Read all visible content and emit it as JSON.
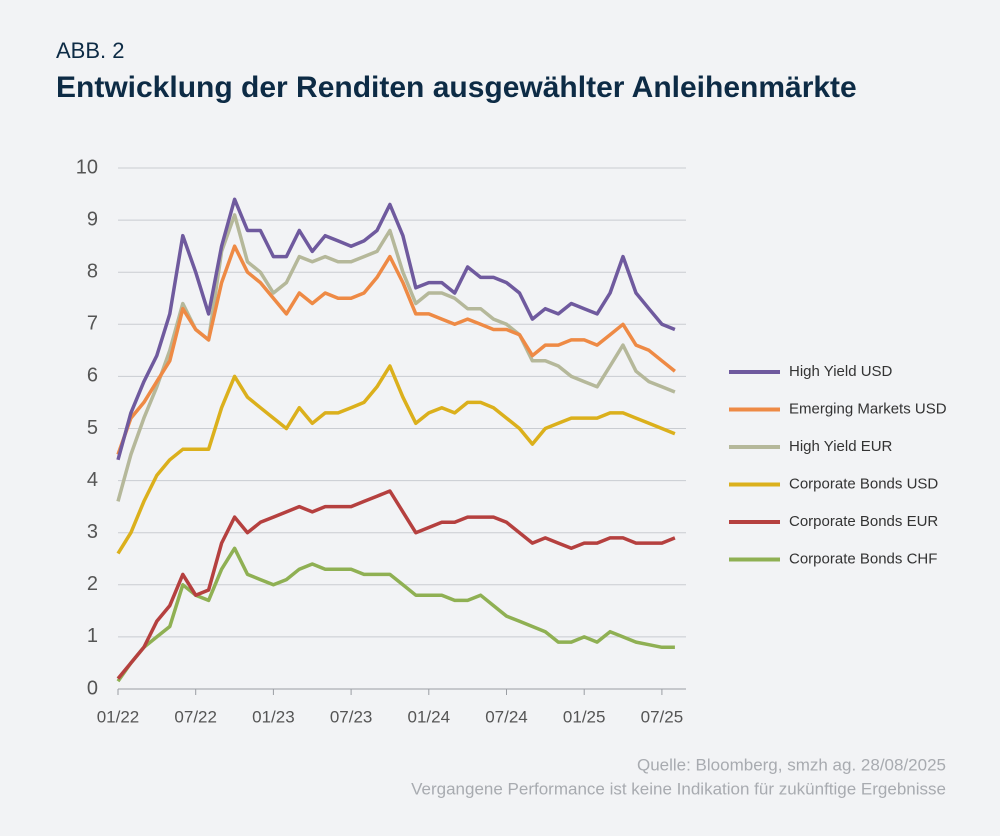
{
  "chart_data": {
    "type": "line",
    "figure_label": "ABB. 2",
    "title": "Entwicklung der Renditen ausgewählter Anleihenmärkte",
    "notes": [
      "Quelle: Bloomberg, smzh ag. 28/08/2025",
      "Vergangene Performance ist keine Indikation für zukünftige Ergebnisse"
    ],
    "x": [
      "01/22",
      "02/22",
      "03/22",
      "04/22",
      "05/22",
      "06/22",
      "07/22",
      "08/22",
      "09/22",
      "10/22",
      "11/22",
      "12/22",
      "01/23",
      "02/23",
      "03/23",
      "04/23",
      "05/23",
      "06/23",
      "07/23",
      "08/23",
      "09/23",
      "10/23",
      "11/23",
      "12/23",
      "01/24",
      "02/24",
      "03/24",
      "04/24",
      "05/24",
      "06/24",
      "07/24",
      "08/24",
      "09/24",
      "10/24",
      "11/24",
      "12/24",
      "01/25",
      "02/25",
      "03/25",
      "04/25",
      "05/25",
      "06/25",
      "07/25",
      "08/25"
    ],
    "xticks": [
      "01/22",
      "07/22",
      "01/23",
      "07/23",
      "01/24",
      "07/24",
      "01/25",
      "07/25"
    ],
    "ylim": [
      0,
      10
    ],
    "yticks": [
      0,
      1,
      2,
      3,
      4,
      5,
      6,
      7,
      8,
      9,
      10
    ],
    "grid": true,
    "legend": "right",
    "series": [
      {
        "name": "High Yield USD",
        "color": "#6f5a9e",
        "values": [
          4.4,
          5.3,
          5.9,
          6.4,
          7.2,
          8.7,
          8.0,
          7.2,
          8.5,
          9.4,
          8.8,
          8.8,
          8.3,
          8.3,
          8.8,
          8.4,
          8.7,
          8.6,
          8.5,
          8.6,
          8.8,
          9.3,
          8.7,
          7.7,
          7.8,
          7.8,
          7.6,
          8.1,
          7.9,
          7.9,
          7.8,
          7.6,
          7.1,
          7.3,
          7.2,
          7.4,
          7.3,
          7.2,
          7.6,
          8.3,
          7.6,
          7.3,
          7.0,
          6.9
        ]
      },
      {
        "name": "Emerging Markets USD",
        "color": "#ee8a45",
        "values": [
          4.5,
          5.2,
          5.5,
          5.9,
          6.3,
          7.3,
          6.9,
          6.7,
          7.8,
          8.5,
          8.0,
          7.8,
          7.5,
          7.2,
          7.6,
          7.4,
          7.6,
          7.5,
          7.5,
          7.6,
          7.9,
          8.3,
          7.8,
          7.2,
          7.2,
          7.1,
          7.0,
          7.1,
          7.0,
          6.9,
          6.9,
          6.8,
          6.4,
          6.6,
          6.6,
          6.7,
          6.7,
          6.6,
          6.8,
          7.0,
          6.6,
          6.5,
          6.3,
          6.1
        ]
      },
      {
        "name": "High Yield EUR",
        "color": "#b5b89a",
        "values": [
          3.6,
          4.5,
          5.2,
          5.8,
          6.5,
          7.4,
          6.9,
          6.7,
          8.4,
          9.1,
          8.2,
          8.0,
          7.6,
          7.8,
          8.3,
          8.2,
          8.3,
          8.2,
          8.2,
          8.3,
          8.4,
          8.8,
          8.0,
          7.4,
          7.6,
          7.6,
          7.5,
          7.3,
          7.3,
          7.1,
          7.0,
          6.8,
          6.3,
          6.3,
          6.2,
          6.0,
          5.9,
          5.8,
          6.2,
          6.6,
          6.1,
          5.9,
          5.8,
          5.7
        ]
      },
      {
        "name": "Corporate Bonds USD",
        "color": "#dbb01c",
        "values": [
          2.6,
          3.0,
          3.6,
          4.1,
          4.4,
          4.6,
          4.6,
          4.6,
          5.4,
          6.0,
          5.6,
          5.4,
          5.2,
          5.0,
          5.4,
          5.1,
          5.3,
          5.3,
          5.4,
          5.5,
          5.8,
          6.2,
          5.6,
          5.1,
          5.3,
          5.4,
          5.3,
          5.5,
          5.5,
          5.4,
          5.2,
          5.0,
          4.7,
          5.0,
          5.1,
          5.2,
          5.2,
          5.2,
          5.3,
          5.3,
          5.2,
          5.1,
          5.0,
          4.9
        ]
      },
      {
        "name": "Corporate Bonds EUR",
        "color": "#b5403f",
        "values": [
          0.2,
          0.5,
          0.8,
          1.3,
          1.6,
          2.2,
          1.8,
          1.9,
          2.8,
          3.3,
          3.0,
          3.2,
          3.3,
          3.4,
          3.5,
          3.4,
          3.5,
          3.5,
          3.5,
          3.6,
          3.7,
          3.8,
          3.4,
          3.0,
          3.1,
          3.2,
          3.2,
          3.3,
          3.3,
          3.3,
          3.2,
          3.0,
          2.8,
          2.9,
          2.8,
          2.7,
          2.8,
          2.8,
          2.9,
          2.9,
          2.8,
          2.8,
          2.8,
          2.9
        ]
      },
      {
        "name": "Corporate Bonds CHF",
        "color": "#8fb053",
        "values": [
          0.15,
          0.5,
          0.8,
          1.0,
          1.2,
          2.0,
          1.8,
          1.7,
          2.3,
          2.7,
          2.2,
          2.1,
          2.0,
          2.1,
          2.3,
          2.4,
          2.3,
          2.3,
          2.3,
          2.2,
          2.2,
          2.2,
          2.0,
          1.8,
          1.8,
          1.8,
          1.7,
          1.7,
          1.8,
          1.6,
          1.4,
          1.3,
          1.2,
          1.1,
          0.9,
          0.9,
          1.0,
          0.9,
          1.1,
          1.0,
          0.9,
          0.85,
          0.8,
          0.8
        ]
      }
    ]
  }
}
